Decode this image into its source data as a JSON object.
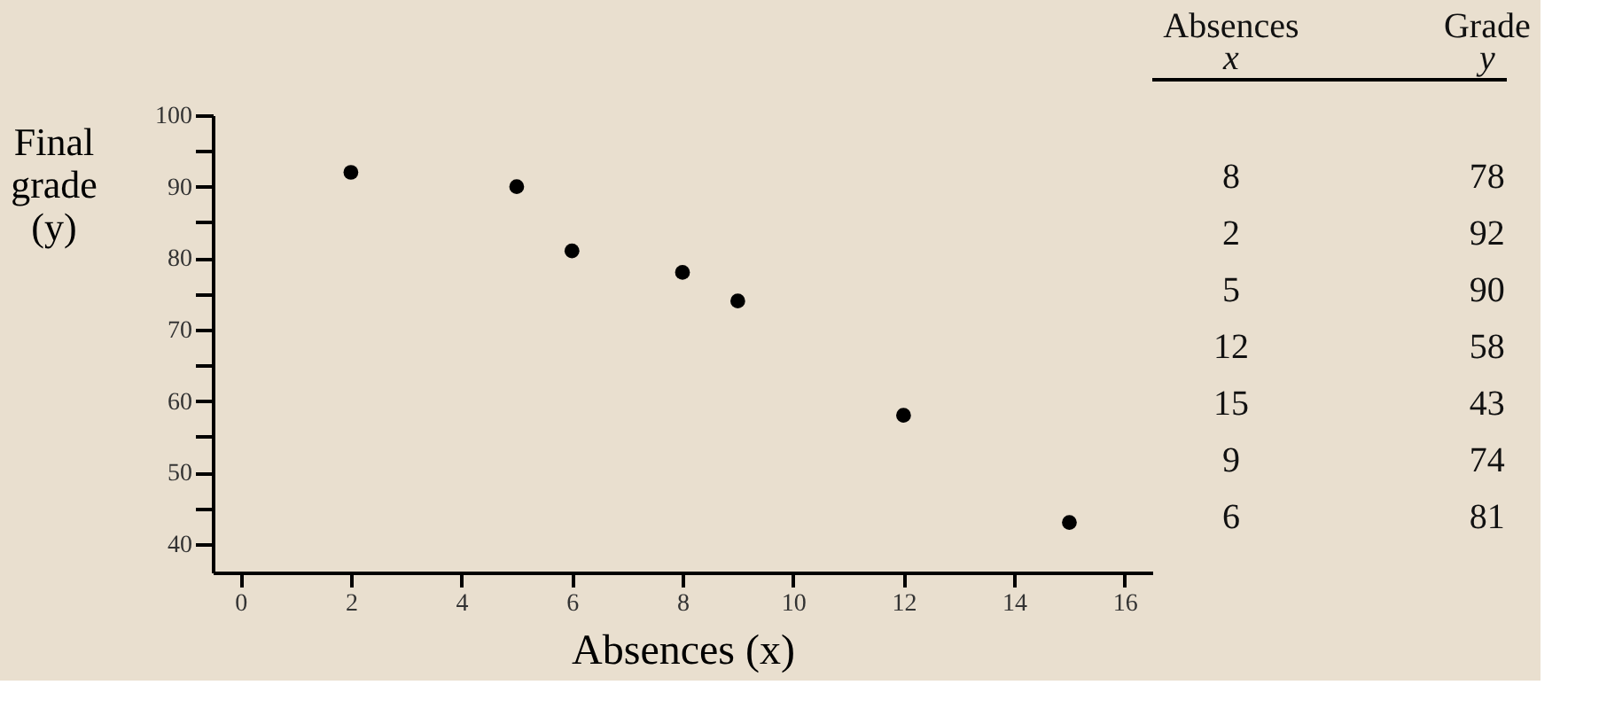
{
  "chart_data": {
    "type": "scatter",
    "xlabel": "Absences (x)",
    "ylabel": "Final grade (y)",
    "x": [
      8,
      2,
      5,
      12,
      15,
      9,
      6
    ],
    "values": [
      78,
      92,
      90,
      58,
      43,
      74,
      81
    ],
    "color": "#000000",
    "marker": "circle",
    "grid": false,
    "xlim": [
      -0.5,
      16.5
    ],
    "xticks": [
      0,
      2,
      4,
      6,
      8,
      10,
      12,
      14,
      16
    ],
    "ylim": [
      36,
      100
    ],
    "yticks": [
      40,
      {
        "value": 45,
        "label": null
      },
      50,
      {
        "value": 55,
        "label": null
      },
      60,
      {
        "value": 65,
        "label": null
      },
      70,
      {
        "value": 75,
        "label": null
      },
      80,
      {
        "value": 85,
        "label": null
      },
      90,
      {
        "value": 95,
        "label": null
      },
      100
    ],
    "annotations": [
      "Absences",
      "x",
      "Grade",
      "y",
      "8",
      "78",
      "2",
      "92",
      "5",
      "90",
      "12",
      "58",
      "15",
      "43",
      "9",
      "74",
      "6",
      "81"
    ]
  }
}
